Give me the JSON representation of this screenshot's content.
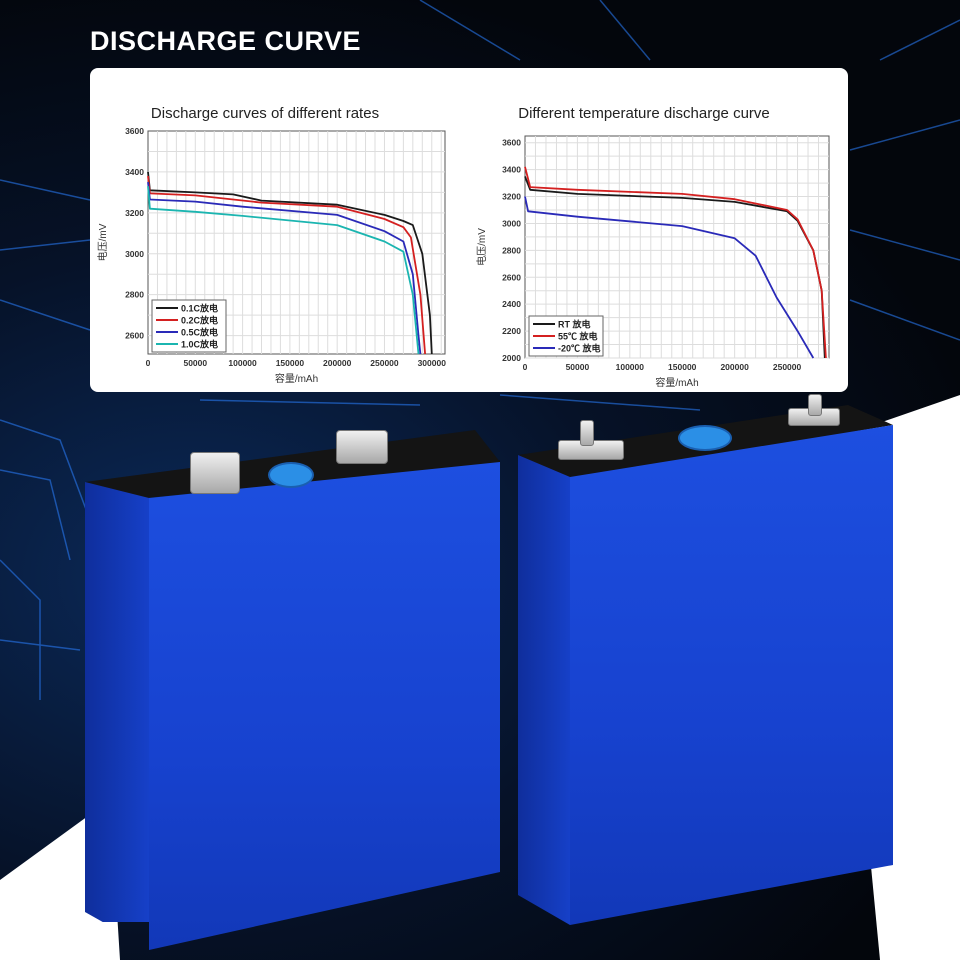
{
  "header": {
    "title": "DISCHARGE CURVE"
  },
  "colors": {
    "black": "#1a1a1a",
    "red": "#d42020",
    "blue": "#2a2ab8",
    "cyan": "#1bb5b0",
    "battery_blue": "#1a47d6"
  },
  "chart_data": [
    {
      "type": "line",
      "title": "Discharge curves of different rates",
      "xlabel": "容量/mAh",
      "ylabel": "电压/mV",
      "xlim": [
        0,
        314000
      ],
      "ylim": [
        2510,
        3600
      ],
      "xticks": [
        0,
        50000,
        100000,
        150000,
        200000,
        250000,
        300000
      ],
      "yticks": [
        2600,
        2800,
        3000,
        3200,
        3400,
        3600
      ],
      "grid": true,
      "legend": "bottom-left",
      "series": [
        {
          "name": "0.1C放电",
          "color": "#1a1a1a",
          "x": [
            0,
            2000,
            50000,
            90000,
            120000,
            200000,
            250000,
            270000,
            280000,
            290000,
            298000,
            300000
          ],
          "y": [
            3400,
            3310,
            3300,
            3290,
            3260,
            3240,
            3190,
            3160,
            3140,
            3000,
            2700,
            2510
          ]
        },
        {
          "name": "0.2C放电",
          "color": "#d42020",
          "x": [
            0,
            2000,
            50000,
            120000,
            200000,
            250000,
            270000,
            278000,
            288000,
            293000
          ],
          "y": [
            3380,
            3295,
            3285,
            3250,
            3230,
            3170,
            3130,
            3080,
            2800,
            2510
          ]
        },
        {
          "name": "0.5C放电",
          "color": "#2a2ab8",
          "x": [
            0,
            2000,
            50000,
            100000,
            200000,
            250000,
            270000,
            280000,
            286000,
            288000
          ],
          "y": [
            3350,
            3265,
            3255,
            3230,
            3190,
            3110,
            3060,
            2900,
            2600,
            2510
          ]
        },
        {
          "name": "1.0C放电",
          "color": "#1bb5b0",
          "x": [
            0,
            2000,
            50000,
            100000,
            200000,
            250000,
            270000,
            280000,
            286000
          ],
          "y": [
            3330,
            3220,
            3205,
            3185,
            3140,
            3060,
            3010,
            2800,
            2510
          ]
        }
      ]
    },
    {
      "type": "line",
      "title": "Different temperature discharge curve",
      "xlabel": "容量/mAh",
      "ylabel": "电压/mV",
      "xlim": [
        0,
        290000
      ],
      "ylim": [
        2000,
        3650
      ],
      "xticks": [
        0,
        50000,
        100000,
        150000,
        200000,
        250000
      ],
      "yticks": [
        2000,
        2200,
        2400,
        2600,
        2800,
        3000,
        3200,
        3400,
        3600
      ],
      "grid": true,
      "legend": "bottom-left",
      "series": [
        {
          "name": "RT 放电",
          "color": "#1a1a1a",
          "x": [
            0,
            5000,
            50000,
            150000,
            200000,
            250000,
            260000,
            275000,
            283000,
            286000
          ],
          "y": [
            3350,
            3250,
            3220,
            3190,
            3160,
            3090,
            3020,
            2800,
            2500,
            2000
          ]
        },
        {
          "name": "55℃ 放电",
          "color": "#d42020",
          "x": [
            0,
            5000,
            50000,
            150000,
            200000,
            250000,
            260000,
            275000,
            283000,
            287000
          ],
          "y": [
            3420,
            3270,
            3250,
            3220,
            3180,
            3100,
            3030,
            2800,
            2500,
            2000
          ]
        },
        {
          "name": "-20℃ 放电",
          "color": "#2a2ab8",
          "x": [
            0,
            3000,
            50000,
            150000,
            200000,
            220000,
            240000,
            260000,
            275000
          ],
          "y": [
            3200,
            3090,
            3050,
            2980,
            2890,
            2760,
            2450,
            2200,
            2000
          ]
        }
      ]
    }
  ]
}
